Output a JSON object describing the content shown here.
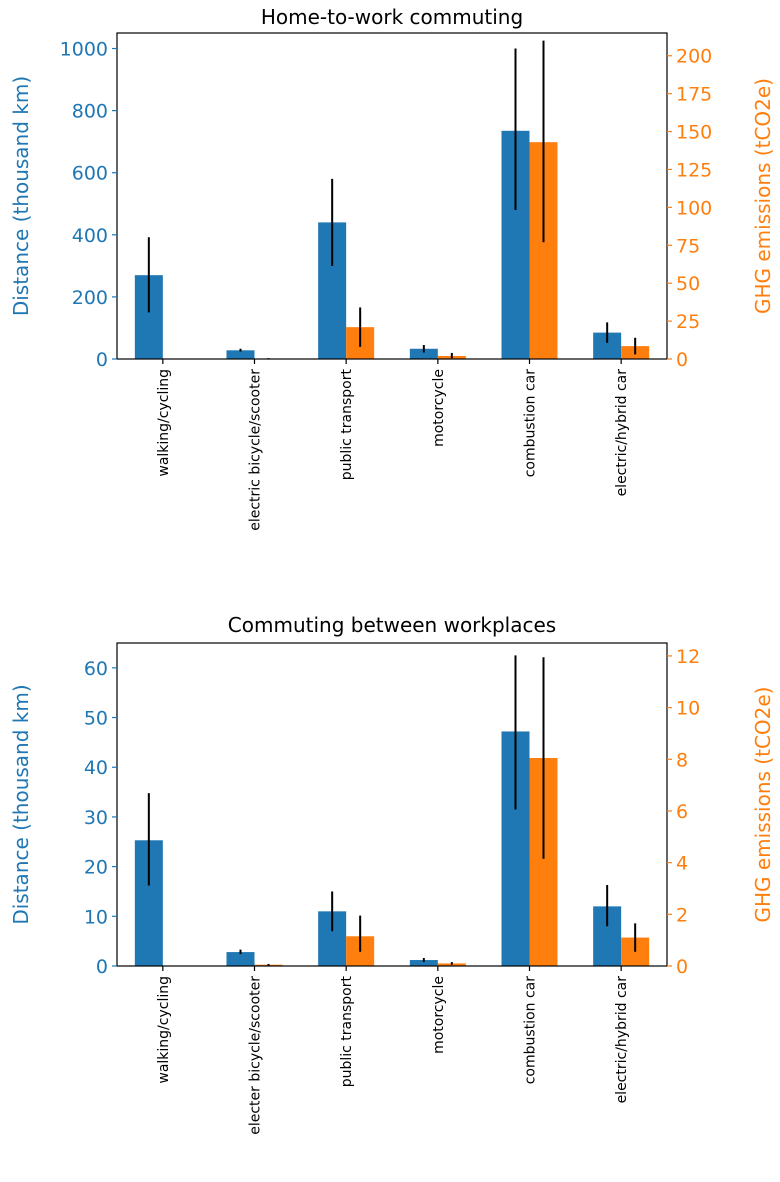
{
  "chart_data": [
    {
      "type": "bar",
      "title": "Home-to-work commuting",
      "categories": [
        "walking/cycling",
        "electric bicycle/scooter",
        "public transport",
        "motorcycle",
        "combustion car",
        "electric/hybrid car"
      ],
      "ylabel": "Distance (thousand km)",
      "ylabel_right": "GHG emissions (tCO2e)",
      "ylim": [
        0,
        1050
      ],
      "ylim_right": [
        0,
        215
      ],
      "yticks": [
        "0",
        "200",
        "400",
        "600",
        "800",
        "1000"
      ],
      "yticks_right": [
        "0",
        "25",
        "50",
        "75",
        "100",
        "125",
        "150",
        "175",
        "200"
      ],
      "series": [
        {
          "axis": "left",
          "color": "#1f77b4",
          "values": [
            270,
            28,
            440,
            33,
            735,
            85
          ],
          "err_low": [
            150,
            24,
            300,
            21,
            480,
            52
          ],
          "err_high": [
            392,
            33,
            580,
            45,
            1000,
            118
          ]
        },
        {
          "axis": "right",
          "color": "#ff7f0e",
          "values": [
            0,
            0.3,
            21,
            2,
            143,
            8.5
          ],
          "err_low": [
            0,
            0.1,
            8,
            0.5,
            77,
            3
          ],
          "err_high": [
            0,
            0.6,
            34,
            4,
            210,
            14
          ]
        }
      ]
    },
    {
      "type": "bar",
      "title": "Commuting between workplaces",
      "categories": [
        "walking/cycling",
        "electer bicycle/scooter",
        "public transport",
        "motorcycle",
        "combustion car",
        "electric/hybrid car"
      ],
      "ylabel": "Distance (thousand km)",
      "ylabel_right": "GHG emissions (tCO2e)",
      "ylim": [
        0,
        65
      ],
      "ylim_right": [
        0,
        12.5
      ],
      "yticks": [
        "0",
        "10",
        "20",
        "30",
        "40",
        "50",
        "60"
      ],
      "yticks_right": [
        "0",
        "2",
        "4",
        "6",
        "8",
        "10",
        "12"
      ],
      "series": [
        {
          "axis": "left",
          "color": "#1f77b4",
          "values": [
            25.3,
            2.8,
            11,
            1.2,
            47.2,
            12
          ],
          "err_low": [
            16.2,
            2.4,
            7,
            0.8,
            31.5,
            8
          ],
          "err_high": [
            34.8,
            3.3,
            15,
            1.6,
            62.5,
            16.3
          ]
        },
        {
          "axis": "right",
          "color": "#ff7f0e",
          "values": [
            0,
            0.05,
            1.15,
            0.1,
            8.05,
            1.1
          ],
          "err_low": [
            0,
            0.02,
            0.55,
            0.05,
            4.15,
            0.55
          ],
          "err_high": [
            0,
            0.08,
            1.95,
            0.15,
            11.95,
            1.65
          ]
        }
      ]
    }
  ]
}
